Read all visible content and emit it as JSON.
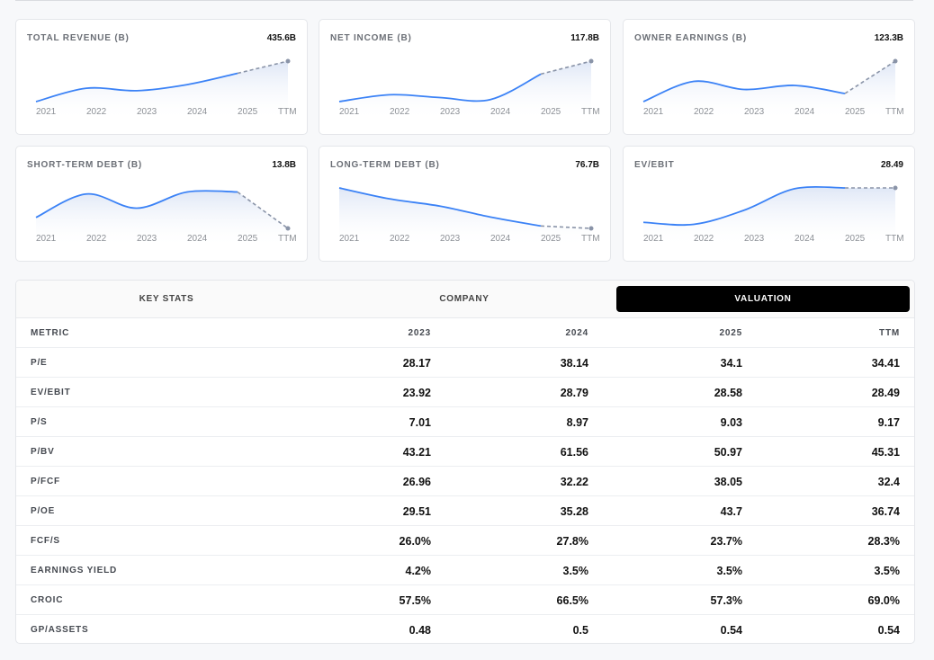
{
  "cards": [
    {
      "title": "TOTAL REVENUE (B)",
      "value": "435.6B",
      "xlabels": [
        "2021",
        "2022",
        "2023",
        "2024",
        "2025",
        "TTM"
      ]
    },
    {
      "title": "NET INCOME (B)",
      "value": "117.8B",
      "xlabels": [
        "2021",
        "2022",
        "2023",
        "2024",
        "2025",
        "TTM"
      ]
    },
    {
      "title": "OWNER EARNINGS (B)",
      "value": "123.3B",
      "xlabels": [
        "2021",
        "2022",
        "2023",
        "2024",
        "2025",
        "TTM"
      ]
    },
    {
      "title": "SHORT-TERM DEBT (B)",
      "value": "13.8B",
      "xlabels": [
        "2021",
        "2022",
        "2023",
        "2024",
        "2025",
        "TTM"
      ]
    },
    {
      "title": "LONG-TERM DEBT (B)",
      "value": "76.7B",
      "xlabels": [
        "2021",
        "2022",
        "2023",
        "2024",
        "2025",
        "TTM"
      ]
    },
    {
      "title": "EV/EBIT",
      "value": "28.49",
      "xlabels": [
        "2021",
        "2022",
        "2023",
        "2024",
        "2025",
        "TTM"
      ]
    }
  ],
  "chart_data": [
    {
      "type": "line",
      "x": [
        "2021",
        "2022",
        "2023",
        "2024",
        "2025",
        "TTM"
      ],
      "values": [
        0.0,
        0.33,
        0.27,
        0.42,
        0.7,
        1.0
      ],
      "dashed_last_segment": true
    },
    {
      "type": "line",
      "x": [
        "2021",
        "2022",
        "2023",
        "2024",
        "2025",
        "TTM"
      ],
      "values": [
        0.0,
        0.17,
        0.1,
        0.05,
        0.68,
        1.0
      ],
      "dashed_last_segment": true
    },
    {
      "type": "line",
      "x": [
        "2021",
        "2022",
        "2023",
        "2024",
        "2025",
        "TTM"
      ],
      "values": [
        0.0,
        0.5,
        0.3,
        0.4,
        0.2,
        1.0
      ],
      "dashed_last_segment": true
    },
    {
      "type": "line",
      "x": [
        "2021",
        "2022",
        "2023",
        "2024",
        "2025",
        "TTM"
      ],
      "values": [
        0.27,
        0.85,
        0.5,
        0.9,
        0.9,
        0.0
      ],
      "dashed_last_segment": true
    },
    {
      "type": "line",
      "x": [
        "2021",
        "2022",
        "2023",
        "2024",
        "2025",
        "TTM"
      ],
      "values": [
        1.0,
        0.73,
        0.55,
        0.28,
        0.06,
        0.0
      ],
      "dashed_last_segment": true
    },
    {
      "type": "line",
      "x": [
        "2021",
        "2022",
        "2023",
        "2024",
        "2025",
        "TTM"
      ],
      "values": [
        0.15,
        0.1,
        0.45,
        0.98,
        1.0,
        1.0
      ],
      "dashed_last_segment": true
    }
  ],
  "colors": {
    "line": "#3b82f6",
    "dashed": "#8a94a8",
    "fill_top": "#dbe4f5",
    "tab_active_bg": "#000000"
  },
  "tabs": [
    {
      "label": "KEY STATS",
      "active": false
    },
    {
      "label": "COMPANY",
      "active": false
    },
    {
      "label": "VALUATION",
      "active": true
    }
  ],
  "table": {
    "headers": [
      "METRIC",
      "2023",
      "2024",
      "2025",
      "TTM"
    ],
    "rows": [
      {
        "metric": "P/E",
        "values": [
          "28.17",
          "38.14",
          "34.1",
          "34.41"
        ]
      },
      {
        "metric": "EV/EBIT",
        "values": [
          "23.92",
          "28.79",
          "28.58",
          "28.49"
        ]
      },
      {
        "metric": "P/S",
        "values": [
          "7.01",
          "8.97",
          "9.03",
          "9.17"
        ]
      },
      {
        "metric": "P/BV",
        "values": [
          "43.21",
          "61.56",
          "50.97",
          "45.31"
        ]
      },
      {
        "metric": "P/FCF",
        "values": [
          "26.96",
          "32.22",
          "38.05",
          "32.4"
        ]
      },
      {
        "metric": "P/OE",
        "values": [
          "29.51",
          "35.28",
          "43.7",
          "36.74"
        ]
      },
      {
        "metric": "FCF/S",
        "values": [
          "26.0%",
          "27.8%",
          "23.7%",
          "28.3%"
        ]
      },
      {
        "metric": "EARNINGS YIELD",
        "values": [
          "4.2%",
          "3.5%",
          "3.5%",
          "3.5%"
        ]
      },
      {
        "metric": "CROIC",
        "values": [
          "57.5%",
          "66.5%",
          "57.3%",
          "69.0%"
        ]
      },
      {
        "metric": "GP/ASSETS",
        "values": [
          "0.48",
          "0.5",
          "0.54",
          "0.54"
        ]
      }
    ]
  }
}
